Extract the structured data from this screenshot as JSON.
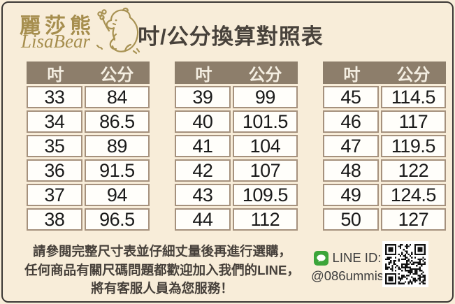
{
  "brand": {
    "name_zh": "麗莎熊",
    "name_en": "LisaBear"
  },
  "title": "吋/公分換算對照表",
  "table_headers": {
    "inch": "吋",
    "cm": "公分"
  },
  "tables": [
    {
      "rows": [
        [
          "33",
          "84"
        ],
        [
          "34",
          "86.5"
        ],
        [
          "35",
          "89"
        ],
        [
          "36",
          "91.5"
        ],
        [
          "37",
          "94"
        ],
        [
          "38",
          "96.5"
        ]
      ]
    },
    {
      "rows": [
        [
          "39",
          "99"
        ],
        [
          "40",
          "101.5"
        ],
        [
          "41",
          "104"
        ],
        [
          "42",
          "107"
        ],
        [
          "43",
          "109.5"
        ],
        [
          "44",
          "112"
        ]
      ]
    },
    {
      "rows": [
        [
          "45",
          "114.5"
        ],
        [
          "46",
          "117"
        ],
        [
          "47",
          "119.5"
        ],
        [
          "48",
          "122"
        ],
        [
          "49",
          "124.5"
        ],
        [
          "50",
          "127"
        ]
      ]
    }
  ],
  "chart_data": {
    "type": "table",
    "columns": [
      "吋",
      "公分"
    ],
    "rows": [
      [
        33,
        84
      ],
      [
        34,
        86.5
      ],
      [
        35,
        89
      ],
      [
        36,
        91.5
      ],
      [
        37,
        94
      ],
      [
        38,
        96.5
      ],
      [
        39,
        99
      ],
      [
        40,
        101.5
      ],
      [
        41,
        104
      ],
      [
        42,
        107
      ],
      [
        43,
        109.5
      ],
      [
        44,
        112
      ],
      [
        45,
        114.5
      ],
      [
        46,
        117
      ],
      [
        47,
        119.5
      ],
      [
        48,
        122
      ],
      [
        49,
        124.5
      ],
      [
        50,
        127
      ]
    ]
  },
  "footer": {
    "note_lines": [
      "請參閱完整尺寸表並仔細丈量後再進行選購，",
      "任何商品有關尺碼問題都歡迎加入我們的LINE，",
      "將有客服人員為您服務！"
    ],
    "line_id_label": "LINE ID:",
    "line_id_value": "@086ummis"
  },
  "colors": {
    "background": "#f8edd9",
    "accent_gold": "#a68e4e",
    "table_header_bg": "#8d7e6b",
    "table_border": "#a5917d",
    "line_green": "#3ca53a",
    "text_dark": "#46403a"
  }
}
